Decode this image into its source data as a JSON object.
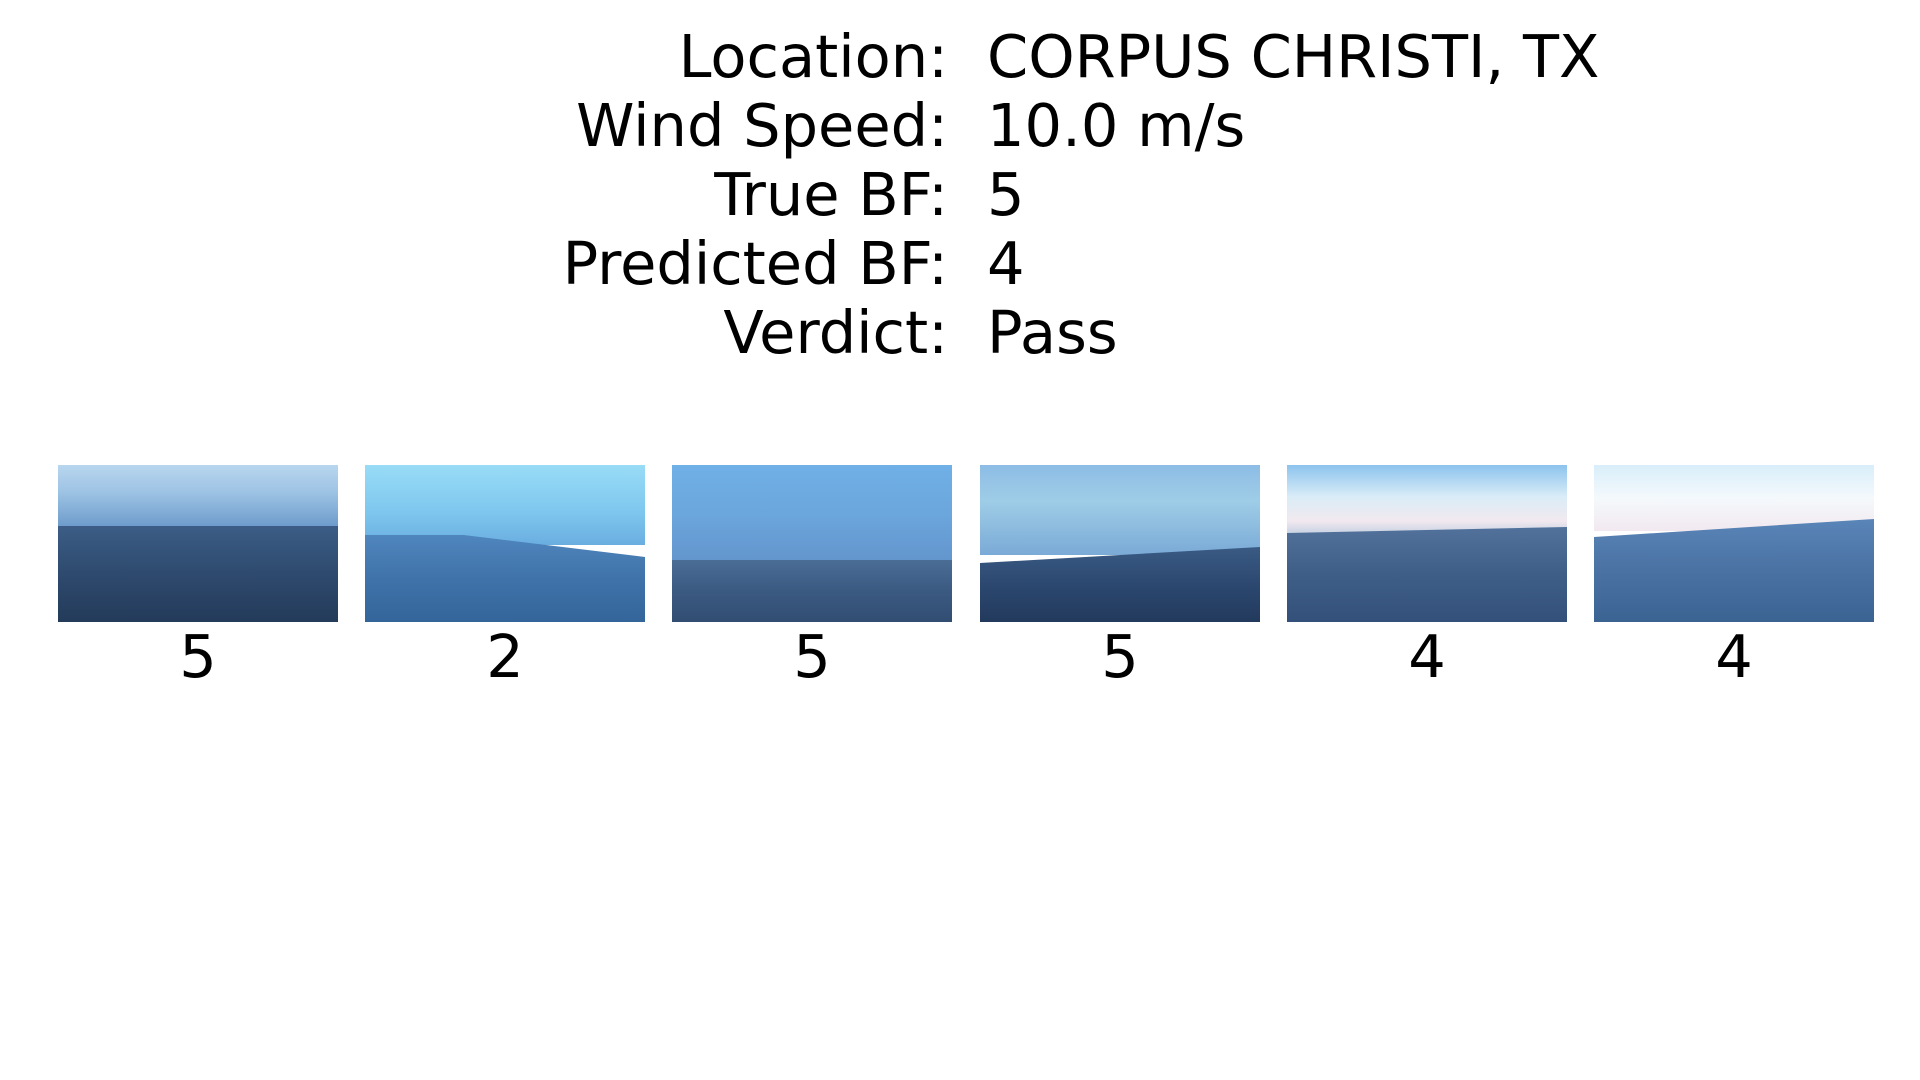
{
  "info": {
    "location_label": "Location:",
    "location_value": "CORPUS CHRISTI, TX",
    "wind_speed_label": "Wind Speed:",
    "wind_speed_value": "10.0 m/s",
    "true_bf_label": "True BF:",
    "true_bf_value": "5",
    "predicted_bf_label": "Predicted BF:",
    "predicted_bf_value": "4",
    "verdict_label": "Verdict:",
    "verdict_value": "Pass"
  },
  "photos": [
    {
      "label": "5"
    },
    {
      "label": "2"
    },
    {
      "label": "5"
    },
    {
      "label": "5"
    },
    {
      "label": "4"
    },
    {
      "label": "4"
    }
  ]
}
